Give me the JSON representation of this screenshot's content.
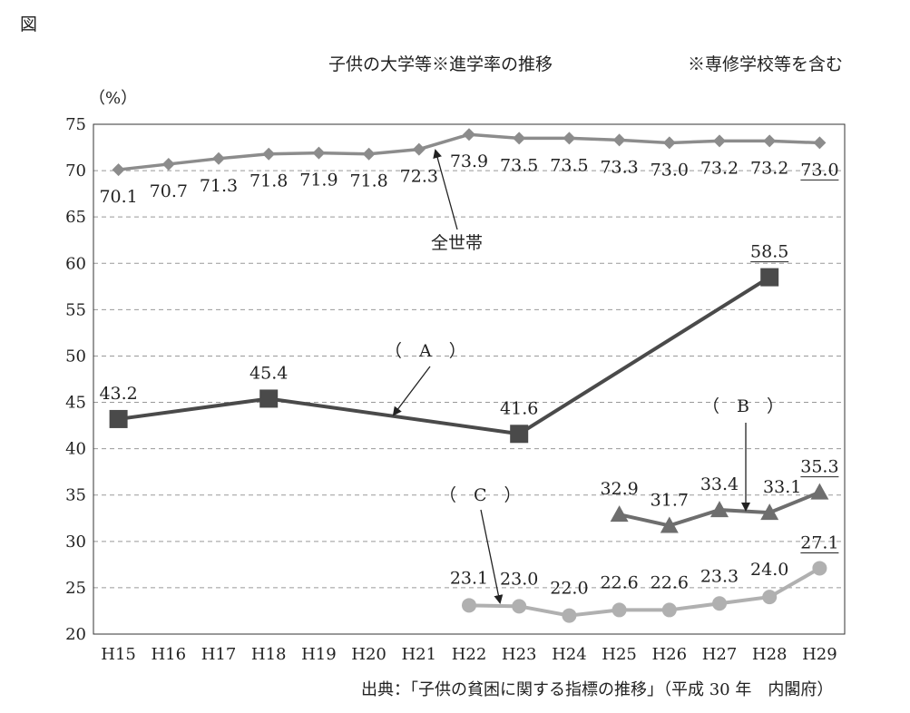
{
  "figure_label": "図",
  "chart_data": {
    "type": "line",
    "title": "子供の大学等※進学率の推移",
    "note": "※専修学校等を含む",
    "ylabel": "（%）",
    "source": "出典：「子供の貧困に関する指標の推移」（平成 30 年　内閣府）",
    "ylim": [
      20,
      75
    ],
    "yticks": [
      20,
      25,
      30,
      35,
      40,
      45,
      50,
      55,
      60,
      65,
      70,
      75
    ],
    "grid": true,
    "categories": [
      "H15",
      "H16",
      "H17",
      "H18",
      "H19",
      "H20",
      "H21",
      "H22",
      "H23",
      "H24",
      "H25",
      "H26",
      "H27",
      "H28",
      "H29"
    ],
    "series": [
      {
        "name": "全世帯",
        "marker": "diamond",
        "color": "#8c8c8c",
        "values": [
          70.1,
          70.7,
          71.3,
          71.8,
          71.9,
          71.8,
          72.3,
          73.9,
          73.5,
          73.5,
          73.3,
          73.0,
          73.2,
          73.2,
          73.0
        ],
        "labels": [
          "70.1",
          "70.7",
          "71.3",
          "71.8",
          "71.9",
          "71.8",
          "72.3",
          "73.9",
          "73.5",
          "73.5",
          "73.3",
          "73.0",
          "73.2",
          "73.2",
          "73.0"
        ]
      },
      {
        "name": "（　A　）",
        "marker": "square",
        "color": "#4a4a4a",
        "values": [
          43.2,
          null,
          null,
          45.4,
          null,
          null,
          null,
          null,
          41.6,
          null,
          null,
          null,
          null,
          58.5,
          null
        ],
        "labels": [
          "43.2",
          null,
          null,
          "45.4",
          null,
          null,
          null,
          null,
          "41.6",
          null,
          null,
          null,
          null,
          "58.5",
          null
        ]
      },
      {
        "name": "（　B　）",
        "marker": "triangle",
        "color": "#6e6e6e",
        "values": [
          null,
          null,
          null,
          null,
          null,
          null,
          null,
          null,
          null,
          null,
          32.9,
          31.7,
          33.4,
          33.1,
          35.3
        ],
        "labels": [
          null,
          null,
          null,
          null,
          null,
          null,
          null,
          null,
          null,
          null,
          "32.9",
          "31.7",
          "33.4",
          "33.1",
          "35.3"
        ]
      },
      {
        "name": "（　C　）",
        "marker": "circle",
        "color": "#b0b0b0",
        "values": [
          null,
          null,
          null,
          null,
          null,
          null,
          null,
          23.1,
          23.0,
          22.0,
          22.6,
          22.6,
          23.3,
          24.0,
          27.1
        ],
        "labels": [
          null,
          null,
          null,
          null,
          null,
          null,
          null,
          "23.1",
          "23.0",
          "22.0",
          "22.6",
          "22.6",
          "23.3",
          "24.0",
          "27.1"
        ]
      }
    ]
  }
}
